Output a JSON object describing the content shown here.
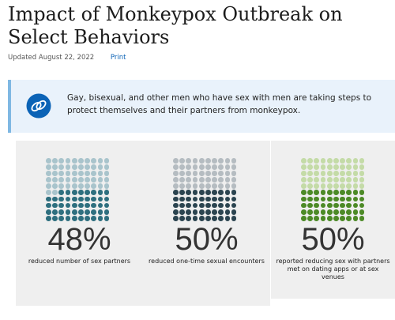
{
  "header": {
    "title": "Impact of Monkeypox Outbreak on Select Behaviors",
    "updated": "Updated August 22, 2022",
    "print_label": "Print"
  },
  "callout": {
    "icon": "rings-icon",
    "text": "Gay, bisexual, and other men who have sex with men are taking steps to protect themselves and their partners from monkeypox."
  },
  "cards": [
    {
      "percent": "48%",
      "value": 0.48,
      "caption": "reduced number of sex partners",
      "color_light": "#a9c4cc",
      "color_dark": "#2e6f7f"
    },
    {
      "percent": "50%",
      "value": 0.5,
      "caption": "reduced one-time sexual encounters",
      "color_light": "#b5bcc1",
      "color_dark": "#2b4450"
    },
    {
      "percent": "50%",
      "value": 0.5,
      "caption": "reported reducing sex with partners met on dating apps or at sex venues",
      "color_light": "#c4dba7",
      "color_dark": "#4c8a26"
    }
  ],
  "colors": {
    "link": "#0b63b6",
    "callout_bg": "#e9f2fb",
    "callout_border": "#7fb8e3"
  }
}
